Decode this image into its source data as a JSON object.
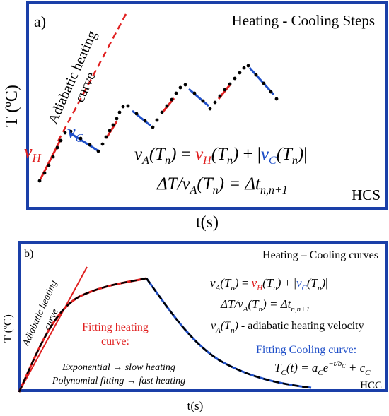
{
  "colors": {
    "frame": "#1a3fa8",
    "heating": "#e02020",
    "cooling": "#1f4fc8",
    "dots": "#000000"
  },
  "panel_a": {
    "label": "a)",
    "title": "Heating - Cooling Steps",
    "tag": "HCS",
    "y_axis": "T (ºC)",
    "x_axis": "t(s)",
    "adiabatic_label_1": "Adiabatic heating",
    "adiabatic_label_2": "curve",
    "vh_base": "v",
    "vh_sub": "H",
    "vc_base": "v",
    "vc_sub": "C",
    "eq1": {
      "va": "v",
      "va_sub": "A",
      "arg": "(T",
      "arg_sub": "n",
      "close": ")",
      "eq": " = ",
      "vh": "v",
      "vh_sub": "H",
      "plus": " + |",
      "vc": "v",
      "vc_sub": "C",
      "end": "|"
    },
    "eq2": {
      "lhs": "ΔT/v",
      "lhs_sub": "A",
      "arg": "(T",
      "arg_sub": "n",
      "close": ") = Δt",
      "rhs_sub": "n,n+1"
    }
  },
  "panel_b": {
    "label": "b)",
    "title": "Heating – Cooling curves",
    "tag": "HCC",
    "y_axis": "T (ºC)",
    "x_axis": "t(s)",
    "adiabatic_label_1": "Adiabatic heating",
    "adiabatic_label_2": "curve",
    "fit_heat_1": "Fitting heating",
    "fit_heat_2": "curve:",
    "exp_line": "Exponential → slow heating",
    "poly_line": "Polynomial fitting → fast heating",
    "fit_cool": "Fitting Cooling curve:",
    "eq_velocity": "- adiabatic heating velocity",
    "cool_eq": {
      "lhs": "T",
      "lhs_sub": "C",
      "mid": "(t) = a",
      "a_sub": "C",
      "e": "e",
      "exp_sup": "−t/b",
      "exp_sub": "C",
      "plus": " + c",
      "c_sub": "C"
    }
  }
}
